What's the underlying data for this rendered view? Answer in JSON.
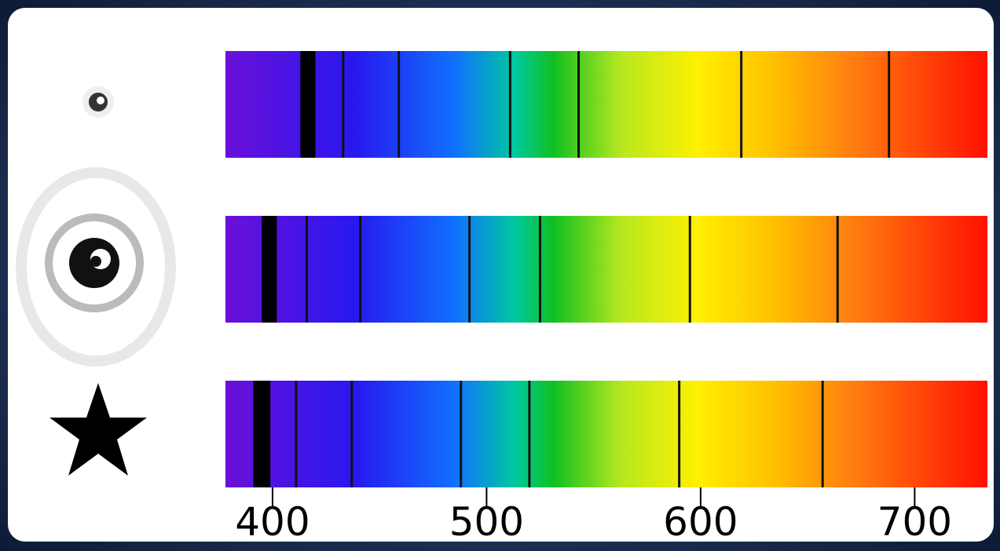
{
  "axis": {
    "xlim": [
      378,
      734
    ],
    "xticks": [
      400,
      500,
      600,
      700
    ]
  },
  "spectra": [
    {
      "broad_line": [
        413,
        420
      ],
      "lines": [
        433,
        459,
        511,
        543,
        619,
        688
      ]
    },
    {
      "broad_line": [
        395,
        402
      ],
      "lines": [
        416,
        441,
        492,
        525,
        595,
        664
      ]
    },
    {
      "broad_line": [
        391,
        399
      ],
      "lines": [
        411,
        437,
        488,
        520,
        590,
        657
      ]
    }
  ]
}
